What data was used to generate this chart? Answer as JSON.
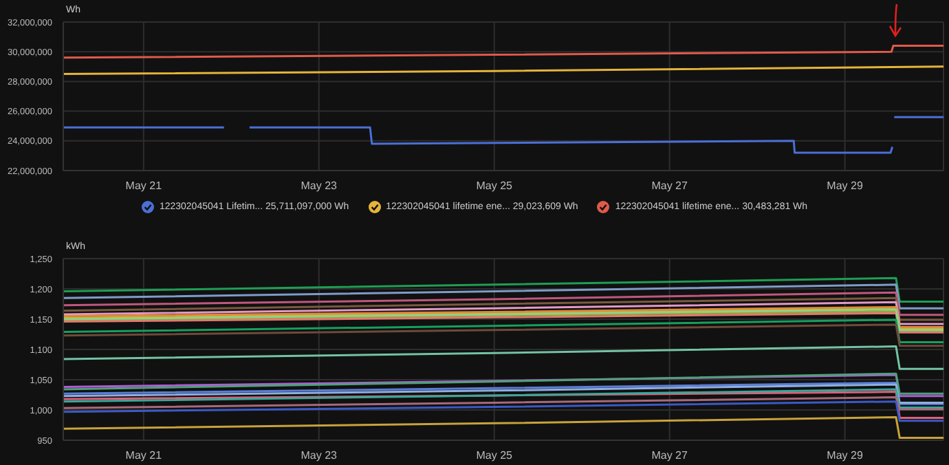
{
  "chart_data": [
    {
      "type": "line",
      "ylabel": "Wh",
      "grid": true,
      "legend": "bottom",
      "xlim": [
        "--05-20T02:00",
        "--05-30T03:00"
      ],
      "xticks": [
        {
          "value": "--05-21",
          "label": "May 21"
        },
        {
          "value": "--05-23",
          "label": "May 23"
        },
        {
          "value": "--05-25",
          "label": "May 25"
        },
        {
          "value": "--05-27",
          "label": "May 27"
        },
        {
          "value": "--05-29",
          "label": "May 29"
        }
      ],
      "ylim": [
        22000000,
        32000000
      ],
      "yticks": [
        {
          "value": 22000000,
          "label": "22,000,000"
        },
        {
          "value": 24000000,
          "label": "24,000,000"
        },
        {
          "value": 26000000,
          "label": "26,000,000"
        },
        {
          "value": 28000000,
          "label": "28,000,000"
        },
        {
          "value": 30000000,
          "label": "30,000,000"
        },
        {
          "value": 32000000,
          "label": "32,000,000"
        }
      ],
      "series": [
        {
          "name": "122302045041 Lifetim... 25,711,097,000 Wh",
          "color": "#4b6fd6",
          "x": [
            "--05-20T02:00",
            "--05-21T22:00",
            "--05-22T01:00",
            "--05-22T05:00",
            "--05-23T14:00",
            "--05-23T14:30",
            "--05-28T10:00",
            "--05-28T10:15",
            "--05-29T12:30",
            "--05-29T13:00",
            "--05-29T13:15",
            "--05-29T13:30",
            "--05-30T03:00"
          ],
          "values": [
            24900000,
            24900000,
            null,
            24900000,
            24900000,
            23800000,
            24000000,
            23200000,
            23200000,
            23600000,
            null,
            25600000,
            25600000
          ]
        },
        {
          "name": "122302045041 lifetime ene... 29,023,609 Wh",
          "color": "#e6b43a",
          "x": [
            "--05-20T02:00",
            "--05-25T00:00",
            "--05-30T03:00"
          ],
          "values": [
            28500000,
            28700000,
            29000000
          ]
        },
        {
          "name": "122302045041 lifetime ene... 30,483,281 Wh",
          "color": "#e05a4a",
          "x": [
            "--05-20T02:00",
            "--05-25T00:00",
            "--05-29T12:45",
            "--05-29T13:15",
            "--05-30T03:00"
          ],
          "values": [
            29600000,
            29800000,
            30000000,
            30400000,
            30400000
          ]
        }
      ]
    },
    {
      "type": "line",
      "ylabel": "kWh",
      "grid": true,
      "x": [
        "--05-20T02:00",
        "--05-25T00:00",
        "--05-29T14:00",
        "--05-29T15:00",
        "--05-30T03:00"
      ],
      "xlim": [
        "--05-20T02:00",
        "--05-30T03:00"
      ],
      "xticks": [
        {
          "value": "--05-21",
          "label": "May 21"
        },
        {
          "value": "--05-23",
          "label": "May 23"
        },
        {
          "value": "--05-25",
          "label": "May 25"
        },
        {
          "value": "--05-27",
          "label": "May 27"
        },
        {
          "value": "--05-29",
          "label": "May 29"
        }
      ],
      "ylim": [
        950,
        1250
      ],
      "yticks": [
        950,
        {
          "value": 1000,
          "label": "1,000"
        },
        {
          "value": 1050,
          "label": "1,050"
        },
        {
          "value": 1100,
          "label": "1,100"
        },
        {
          "value": 1150,
          "label": "1,150"
        },
        {
          "value": 1200,
          "label": "1,200"
        },
        {
          "value": 1250,
          "label": "1,250"
        }
      ],
      "series": [
        {
          "color": "#1f9e55",
          "values": [
            1196,
            1207,
            1218,
            1179,
            1179
          ]
        },
        {
          "color": "#7f9cc8",
          "values": [
            1185,
            1196,
            1207,
            1168,
            1168
          ]
        },
        {
          "color": "#c0587e",
          "values": [
            1173,
            1183,
            1194,
            1157,
            1157
          ]
        },
        {
          "color": "#7a5a3e",
          "values": [
            1164,
            1175,
            1185,
            1149,
            1149
          ]
        },
        {
          "color": "#e39ac8",
          "values": [
            1158,
            1168,
            1178,
            1142,
            1142
          ]
        },
        {
          "color": "#d6b32a",
          "values": [
            1152,
            1160,
            1168,
            1134,
            1134
          ]
        },
        {
          "color": "#9aa634",
          "values": [
            1148,
            1156,
            1163,
            1130,
            1130
          ]
        },
        {
          "color": "#e08a3a",
          "values": [
            1155,
            1162,
            1170,
            1137,
            1137
          ]
        },
        {
          "color": "#e07a6e",
          "values": [
            1146,
            1153,
            1160,
            1128,
            1128
          ]
        },
        {
          "color": "#8fd18a",
          "values": [
            1150,
            1158,
            1166,
            1132,
            1132
          ]
        },
        {
          "color": "#15a160",
          "values": [
            1129,
            1139,
            1149,
            1112,
            1112
          ]
        },
        {
          "color": "#6e4a3a",
          "values": [
            1123,
            1132,
            1141,
            1106,
            1106
          ]
        },
        {
          "color": "#74c4a4",
          "values": [
            1084,
            1094,
            1105,
            1068,
            1068
          ]
        },
        {
          "color": "#b05cd6",
          "values": [
            1038,
            1048,
            1058,
            1023,
            1023
          ]
        },
        {
          "color": "#4fa07a",
          "values": [
            1034,
            1047,
            1060,
            1027,
            1027
          ]
        },
        {
          "color": "#5a7ed8",
          "values": [
            1027,
            1036,
            1045,
            1010,
            1010
          ]
        },
        {
          "color": "#8fb0e0",
          "values": [
            1023,
            1032,
            1042,
            1012,
            1012
          ]
        },
        {
          "color": "#e0607a",
          "values": [
            1018,
            1024,
            1030,
            987,
            987
          ]
        },
        {
          "color": "#3aa79a",
          "values": [
            1014,
            1024,
            1034,
            1004,
            1004
          ]
        },
        {
          "color": "#a86a7a",
          "values": [
            1003,
            1012,
            1021,
            1001,
            1001
          ]
        },
        {
          "color": "#3a5ac8",
          "values": [
            997,
            1005,
            1014,
            982,
            982
          ]
        },
        {
          "color": "#c9a33a",
          "values": [
            969,
            978,
            988,
            954,
            954
          ]
        }
      ]
    }
  ]
}
